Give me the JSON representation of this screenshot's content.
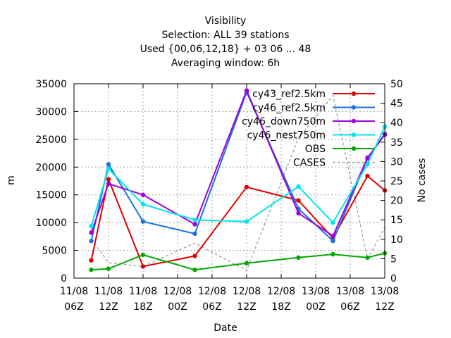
{
  "chart_data": {
    "type": "line",
    "title_lines": [
      "Visibility",
      "Selection: ALL      39 stations",
      "Used {00,06,12,18} + 03 06 ... 48",
      "Averaging window:  6h"
    ],
    "xlabel": "Date",
    "ylabel": "m",
    "y2label": "No cases",
    "x_ticks": [
      "11/08\n06Z",
      "11/08\n12Z",
      "11/08\n18Z",
      "12/08\n00Z",
      "12/08\n06Z",
      "12/08\n12Z",
      "12/08\n18Z",
      "13/08\n00Z",
      "13/08\n06Z",
      "13/08\n12Z"
    ],
    "xlim": [
      0,
      54
    ],
    "ylim": [
      0,
      35000
    ],
    "y_ticks": [
      0,
      5000,
      10000,
      15000,
      20000,
      25000,
      30000,
      35000
    ],
    "y2lim": [
      0,
      50
    ],
    "y2_ticks": [
      0,
      5,
      10,
      15,
      20,
      25,
      30,
      35,
      40,
      45,
      50
    ],
    "grid": true,
    "legend_position": "top-right",
    "series": [
      {
        "name": "cy43_ref2.5km",
        "color": "#dd0000",
        "marker": "circle",
        "axis": "y",
        "dash": false,
        "x": [
          3,
          6,
          12,
          21,
          30,
          39,
          45,
          51,
          54
        ],
        "y": [
          3200,
          17800,
          2100,
          4000,
          16400,
          14000,
          7200,
          18400,
          15800
        ]
      },
      {
        "name": "cy46_ref2.5km",
        "color": "#1a72dc",
        "marker": "circle",
        "axis": "y",
        "dash": false,
        "x": [
          3,
          6,
          12,
          21,
          30,
          39,
          45,
          51,
          54
        ],
        "y": [
          6700,
          20500,
          10200,
          8000,
          33500,
          12500,
          6700,
          21500,
          26000
        ]
      },
      {
        "name": "cy46_down750m",
        "color": "#a000e0",
        "marker": "circle",
        "axis": "y",
        "dash": false,
        "x": [
          3,
          6,
          12,
          21,
          30,
          39,
          45,
          51,
          54
        ],
        "y": [
          8200,
          17000,
          15000,
          9700,
          33800,
          11700,
          7600,
          21700,
          25800
        ]
      },
      {
        "name": "cy46_nest750m",
        "color": "#00e6e6",
        "marker": "circle",
        "axis": "y",
        "dash": false,
        "x": [
          3,
          6,
          12,
          21,
          30,
          39,
          45,
          51,
          54
        ],
        "y": [
          9400,
          19700,
          13300,
          10500,
          10200,
          16500,
          10000,
          20500,
          27300
        ]
      },
      {
        "name": "OBS",
        "color": "#00aa00",
        "marker": "circle",
        "axis": "y",
        "dash": false,
        "x": [
          3,
          6,
          12,
          21,
          30,
          39,
          45,
          51,
          54
        ],
        "y": [
          1500,
          1700,
          4200,
          1500,
          2700,
          3700,
          4300,
          3700,
          4500
        ]
      },
      {
        "name": "CASES",
        "color": "#999999",
        "marker": "none",
        "axis": "y2",
        "dash": true,
        "x": [
          3,
          6,
          12,
          21,
          30,
          39,
          45,
          51,
          54
        ],
        "y": [
          10,
          4,
          3,
          9,
          2,
          36,
          47,
          5,
          13
        ]
      }
    ]
  }
}
